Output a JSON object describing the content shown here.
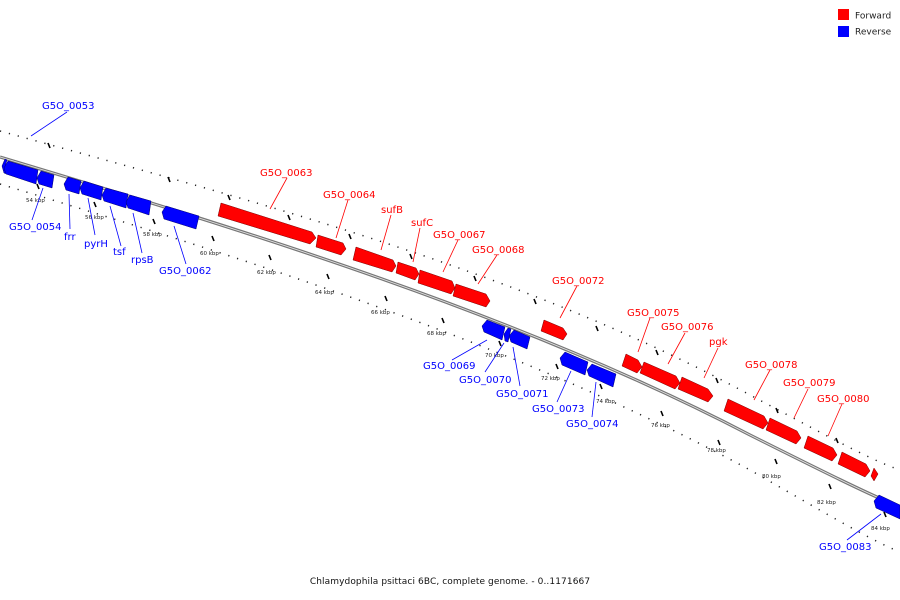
{
  "legend": {
    "forward_label": "Forward",
    "reverse_label": "Reverse",
    "forward_color": "#ff0000",
    "reverse_color": "#0000ff"
  },
  "caption": "Chlamydophila psittaci 6BC, complete genome. - 0..1171667",
  "ticks": [
    "54 kbp",
    "56 kbp",
    "58 kbp",
    "60 kbp",
    "62 kbp",
    "64 kbp",
    "66 kbp",
    "68 kbp",
    "70 kbp",
    "72 kbp",
    "74 kbp",
    "76 kbp",
    "78 kbp",
    "80 kbp",
    "82 kbp",
    "84 kbp"
  ],
  "forward_genes": [
    "G5O_0063",
    "G5O_0064",
    "sufB",
    "sufC",
    "G5O_0067",
    "G5O_0068",
    "G5O_0072",
    "G5O_0075",
    "G5O_0076",
    "pgk",
    "G5O_0078",
    "G5O_0079",
    "G5O_0080"
  ],
  "reverse_genes": [
    "G5O_0053",
    "G5O_0054",
    "frr",
    "pyrH",
    "tsf",
    "rpsB",
    "G5O_0062",
    "G5O_0069",
    "G5O_0070",
    "G5O_0071",
    "G5O_0073",
    "G5O_0074",
    "G5O_0083"
  ]
}
